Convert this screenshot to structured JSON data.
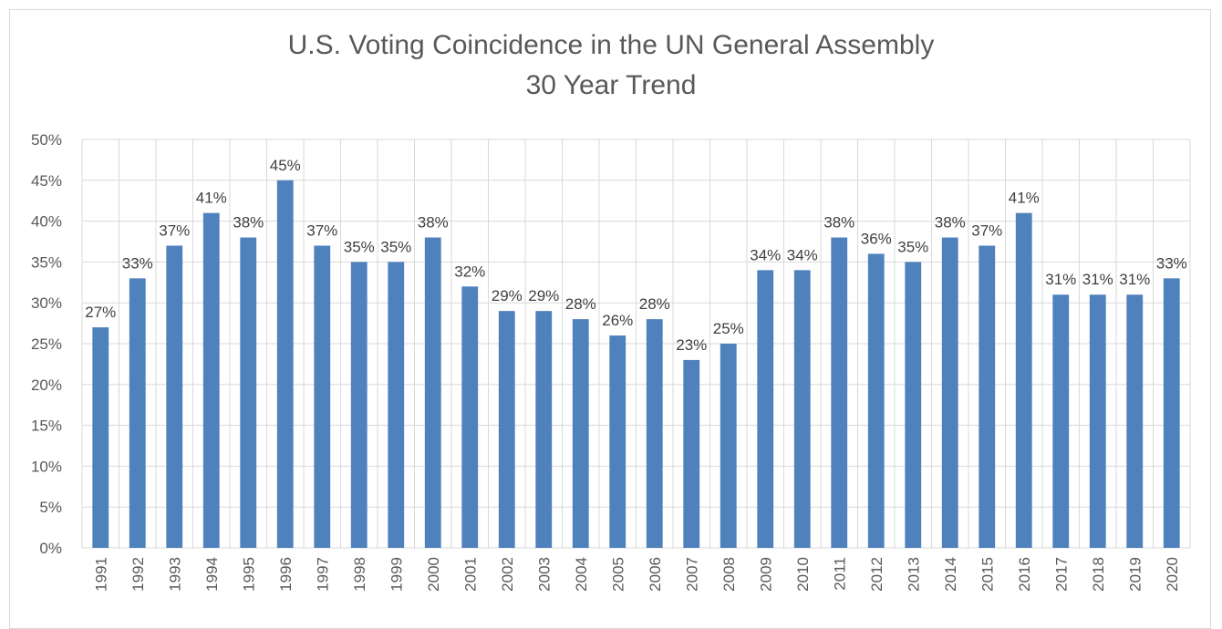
{
  "chart_data": {
    "type": "bar",
    "title": "U.S. Voting Coincidence in the UN General Assembly",
    "subtitle": "30 Year Trend",
    "xlabel": "",
    "ylabel": "",
    "ylim": [
      0,
      50
    ],
    "yticks": [
      "0%",
      "5%",
      "10%",
      "15%",
      "20%",
      "25%",
      "30%",
      "35%",
      "40%",
      "45%",
      "50%"
    ],
    "ytick_values": [
      0,
      5,
      10,
      15,
      20,
      25,
      30,
      35,
      40,
      45,
      50
    ],
    "grid": true,
    "legend": "none",
    "bar_color": "#4f81bd",
    "categories": [
      "1991",
      "1992",
      "1993",
      "1994",
      "1995",
      "1996",
      "1997",
      "1998",
      "1999",
      "2000",
      "2001",
      "2002",
      "2003",
      "2004",
      "2005",
      "2006",
      "2007",
      "2008",
      "2009",
      "2010",
      "2011",
      "2012",
      "2013",
      "2014",
      "2015",
      "2016",
      "2017",
      "2018",
      "2019",
      "2020"
    ],
    "values": [
      27,
      33,
      37,
      41,
      38,
      45,
      37,
      35,
      35,
      38,
      32,
      29,
      29,
      28,
      26,
      28,
      23,
      25,
      34,
      34,
      38,
      36,
      35,
      38,
      37,
      41,
      31,
      31,
      31,
      33
    ],
    "data_labels": [
      "27%",
      "33%",
      "37%",
      "41%",
      "38%",
      "45%",
      "37%",
      "35%",
      "35%",
      "38%",
      "32%",
      "29%",
      "29%",
      "28%",
      "26%",
      "28%",
      "23%",
      "25%",
      "34%",
      "34%",
      "38%",
      "36%",
      "35%",
      "38%",
      "37%",
      "41%",
      "31%",
      "31%",
      "31%",
      "33%"
    ]
  }
}
